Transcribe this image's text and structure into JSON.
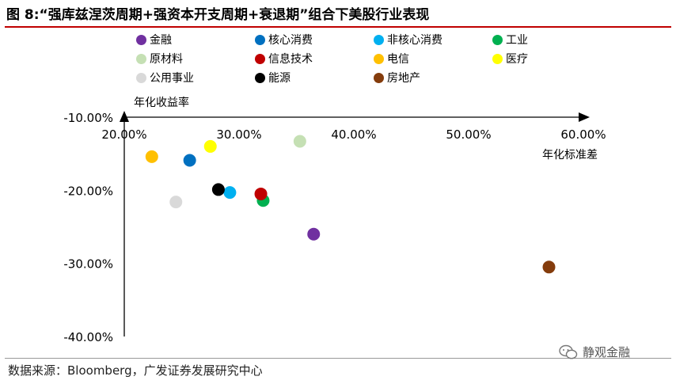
{
  "figure": {
    "title": "图 8:“强库兹涅茨周期+强资本开支周期+衰退期”组合下美股行业表现",
    "source": "数据来源：Bloomberg，广发证券发展研究中心",
    "watermark": "静观金融"
  },
  "chart_data": {
    "type": "scatter",
    "title": "",
    "xlabel": "年化标准差",
    "ylabel": "年化收益率",
    "xlim": [
      0.2,
      0.6
    ],
    "ylim": [
      -0.4,
      -0.1
    ],
    "x_ticks": [
      "20.00%",
      "30.00%",
      "40.00%",
      "50.00%",
      "60.00%"
    ],
    "x_tick_values": [
      0.2,
      0.3,
      0.4,
      0.5,
      0.6
    ],
    "y_ticks": [
      "-10.00%",
      "-20.00%",
      "-30.00%",
      "-40.00%"
    ],
    "y_tick_values": [
      -0.1,
      -0.2,
      -0.3,
      -0.4
    ],
    "grid": false,
    "legend_position": "top",
    "series": [
      {
        "name": "金融",
        "color": "#7030a0",
        "x": 0.365,
        "y": -0.26
      },
      {
        "name": "核心消费",
        "color": "#0070c0",
        "x": 0.257,
        "y": -0.159
      },
      {
        "name": "非核心消费",
        "color": "#00b0f0",
        "x": 0.292,
        "y": -0.203
      },
      {
        "name": "工业",
        "color": "#00b050",
        "x": 0.321,
        "y": -0.214
      },
      {
        "name": "原材料",
        "color": "#c5e0b4",
        "x": 0.353,
        "y": -0.133
      },
      {
        "name": "信息技术",
        "color": "#c00000",
        "x": 0.319,
        "y": -0.205
      },
      {
        "name": "电信",
        "color": "#ffc000",
        "x": 0.224,
        "y": -0.154
      },
      {
        "name": "医疗",
        "color": "#ffff00",
        "x": 0.275,
        "y": -0.14
      },
      {
        "name": "公用事业",
        "color": "#d9d9d9",
        "x": 0.245,
        "y": -0.216
      },
      {
        "name": "能源",
        "color": "#000000",
        "x": 0.282,
        "y": -0.199
      },
      {
        "name": "房地产",
        "color": "#843c0c",
        "x": 0.57,
        "y": -0.305
      }
    ]
  }
}
